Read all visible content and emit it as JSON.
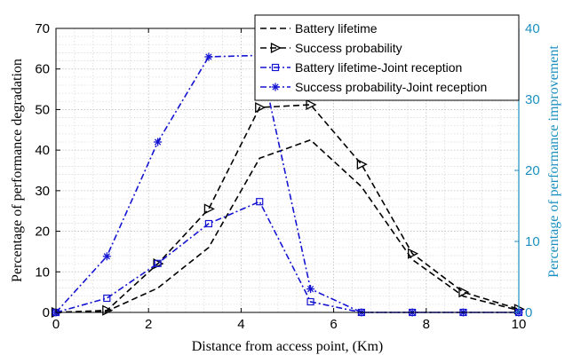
{
  "chart_data": {
    "type": "line",
    "xlabel": "Distance from access point, (Km)",
    "ylabel_left": "Percentage of performance degradation",
    "ylabel_right": "Percentage of performance improvement",
    "xlim": [
      0,
      10
    ],
    "ylim_left": [
      0,
      70
    ],
    "ylim_right": [
      0,
      40
    ],
    "x_ticks": [
      "0",
      "2",
      "4",
      "6",
      "8",
      "10"
    ],
    "y_left_ticks": [
      "0",
      "10",
      "20",
      "30",
      "40",
      "50",
      "60",
      "70"
    ],
    "y_right_ticks": [
      "0",
      "10",
      "20",
      "30",
      "40"
    ],
    "grid": true,
    "legend_position": "top-right",
    "colors": {
      "black": "#000000",
      "blue": "#1414d2",
      "right_axis": "#1a8fbf"
    },
    "series": [
      {
        "name": "Battery lifetime",
        "axis": "left",
        "color": "#000000",
        "line": "dashed",
        "marker": "none",
        "x": [
          0,
          1.1,
          2.2,
          3.3,
          4.4,
          5.5,
          6.6,
          7.7,
          8.8,
          10
        ],
        "y": [
          0,
          0.3,
          6,
          16,
          38,
          42.5,
          31,
          13,
          4,
          0.5
        ]
      },
      {
        "name": "Success probability",
        "axis": "left",
        "color": "#000000",
        "line": "dashed",
        "marker": "triangle-right",
        "x": [
          0,
          1.1,
          2.2,
          3.3,
          4.4,
          5.5,
          6.6,
          7.7,
          8.8,
          10
        ],
        "y": [
          0,
          0.5,
          12,
          25.5,
          50.5,
          51.2,
          36.5,
          14.5,
          5,
          0.8
        ]
      },
      {
        "name": "Battery lifetime-Joint reception",
        "axis": "right",
        "color": "#1414d2",
        "line": "dashdot",
        "marker": "square",
        "x": [
          0,
          1.1,
          2.2,
          3.3,
          4.4,
          5.5,
          6.6,
          7.7,
          8.8,
          10
        ],
        "y": [
          0,
          2,
          6.9,
          12.5,
          15.6,
          1.5,
          0,
          0,
          0,
          0
        ]
      },
      {
        "name": "Success probability-Joint reception",
        "axis": "right",
        "color": "#1414d2",
        "line": "dashdot",
        "marker": "asterisk",
        "x": [
          0,
          1.1,
          2.2,
          3.3,
          4.4,
          5.5,
          6.6,
          7.7,
          8.8,
          10
        ],
        "y": [
          0,
          7.9,
          24,
          36,
          36.2,
          3.3,
          0,
          0,
          0,
          0
        ]
      }
    ]
  }
}
